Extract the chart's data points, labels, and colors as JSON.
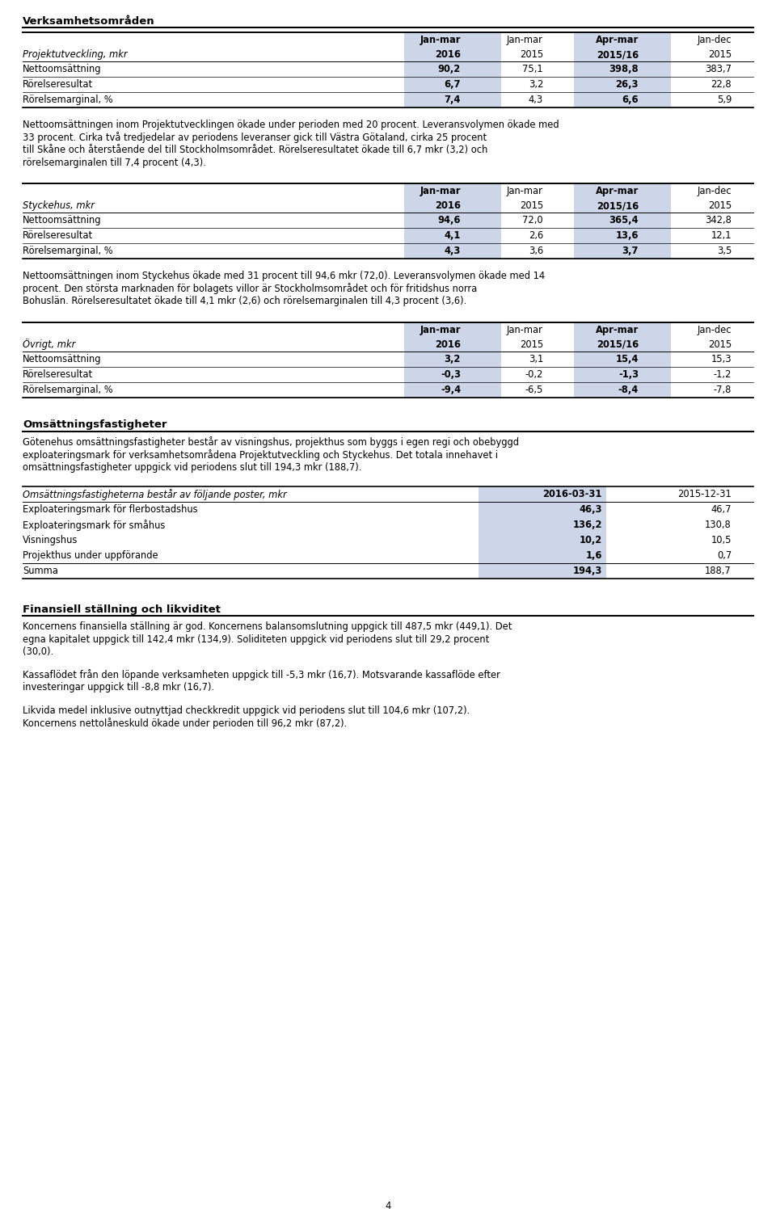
{
  "page_bg": "#ffffff",
  "text_color": "#000000",
  "highlight_bg": "#cdd5e8",
  "section1_title": "Verksamhetsområden",
  "table1_header_row1": [
    "",
    "Jan-mar",
    "Jan-mar",
    "Apr-mar",
    "Jan-dec"
  ],
  "table1_header_row2": [
    "Projektutveckling, mkr",
    "2016",
    "2015",
    "2015/16",
    "2015"
  ],
  "table1_rows": [
    [
      "Nettoomsättning",
      "90,2",
      "75,1",
      "398,8",
      "383,7"
    ],
    [
      "Rörelseresultat",
      "6,7",
      "3,2",
      "26,3",
      "22,8"
    ],
    [
      "Rörelsemarginal, %",
      "7,4",
      "4,3",
      "6,6",
      "5,9"
    ]
  ],
  "text1": "Nettoomsättningen inom Projektutvecklingen ökade under perioden med 20 procent. Leveransvolymen ökade med 33 procent. Cirka två tredjedelar av periodens leveranser gick till Västra Götaland, cirka 25 procent till Skåne och återstående del till Stockholmsområdet. Rörelseresultatet ökade till 6,7 mkr (3,2) och rörelsemarginalen till 7,4 procent (4,3).",
  "table2_header_row1": [
    "",
    "Jan-mar",
    "Jan-mar",
    "Apr-mar",
    "Jan-dec"
  ],
  "table2_header_row2": [
    "Styckehus, mkr",
    "2016",
    "2015",
    "2015/16",
    "2015"
  ],
  "table2_rows": [
    [
      "Nettoomsättning",
      "94,6",
      "72,0",
      "365,4",
      "342,8"
    ],
    [
      "Rörelseresultat",
      "4,1",
      "2,6",
      "13,6",
      "12,1"
    ],
    [
      "Rörelsemarginal, %",
      "4,3",
      "3,6",
      "3,7",
      "3,5"
    ]
  ],
  "text2": "Nettoomsättningen inom Styckehus ökade med 31 procent till 94,6 mkr (72,0). Leveransvolymen ökade med 14 procent. Den största marknaden för bolagets villor är Stockholmsområdet och för fritidshus norra Bohuslän. Rörelseresultatet ökade till 4,1 mkr (2,6) och rörelsemarginalen till 4,3 procent (3,6).",
  "table3_header_row1": [
    "",
    "Jan-mar",
    "Jan-mar",
    "Apr-mar",
    "Jan-dec"
  ],
  "table3_header_row2": [
    "Övrigt, mkr",
    "2016",
    "2015",
    "2015/16",
    "2015"
  ],
  "table3_rows": [
    [
      "Nettoomsättning",
      "3,2",
      "3,1",
      "15,4",
      "15,3"
    ],
    [
      "Rörelseresultat",
      "-0,3",
      "-0,2",
      "-1,3",
      "-1,2"
    ],
    [
      "Rörelsemarginal, %",
      "-9,4",
      "-6,5",
      "-8,4",
      "-7,8"
    ]
  ],
  "section2_title": "Omsättningsfastigheter",
  "text3": "Götenehus omsättningsfastigheter består av visningshus, projekthus som byggs i egen regi och obebyggd exploateringsmark för verksamhetsområdena Projektutveckling och Styckehus. Det totala innehavet i omsättningsfastigheter uppgick vid periodens slut till 194,3 mkr (188,7).",
  "table4_header": [
    "Omsättningsfastigheterna består av följande poster, mkr",
    "2016-03-31",
    "2015-12-31"
  ],
  "table4_rows": [
    [
      "Exploateringsmark för flerbostadshus",
      "46,3",
      "46,7"
    ],
    [
      "Exploateringsmark för småhus",
      "136,2",
      "130,8"
    ],
    [
      "Visningshus",
      "10,2",
      "10,5"
    ],
    [
      "Projekthus under uppförande",
      "1,6",
      "0,7"
    ]
  ],
  "table4_summa": [
    "Summa",
    "194,3",
    "188,7"
  ],
  "section3_title": "Finansiell ställning och likviditet",
  "text4": "Koncernens finansiella ställning är god. Koncernens balansomslutning uppgick till 487,5 mkr (449,1). Det egna kapitalet uppgick till 142,4 mkr (134,9). Soliditeten uppgick vid periodens slut till 29,2 procent (30,0).",
  "text5": "Kassaflödet från den löpande verksamheten uppgick till -5,3 mkr (16,7). Motsvarande kassaflöde efter investeringar uppgick till -8,8 mkr (16,7).",
  "text6": "Likvida medel inklusive outnyttjad checkkredit uppgick vid periodens slut till 104,6 mkr (107,2). Koncernens nettolåneskuld ökade under perioden till 96,2 mkr (87,2).",
  "page_number": "4"
}
